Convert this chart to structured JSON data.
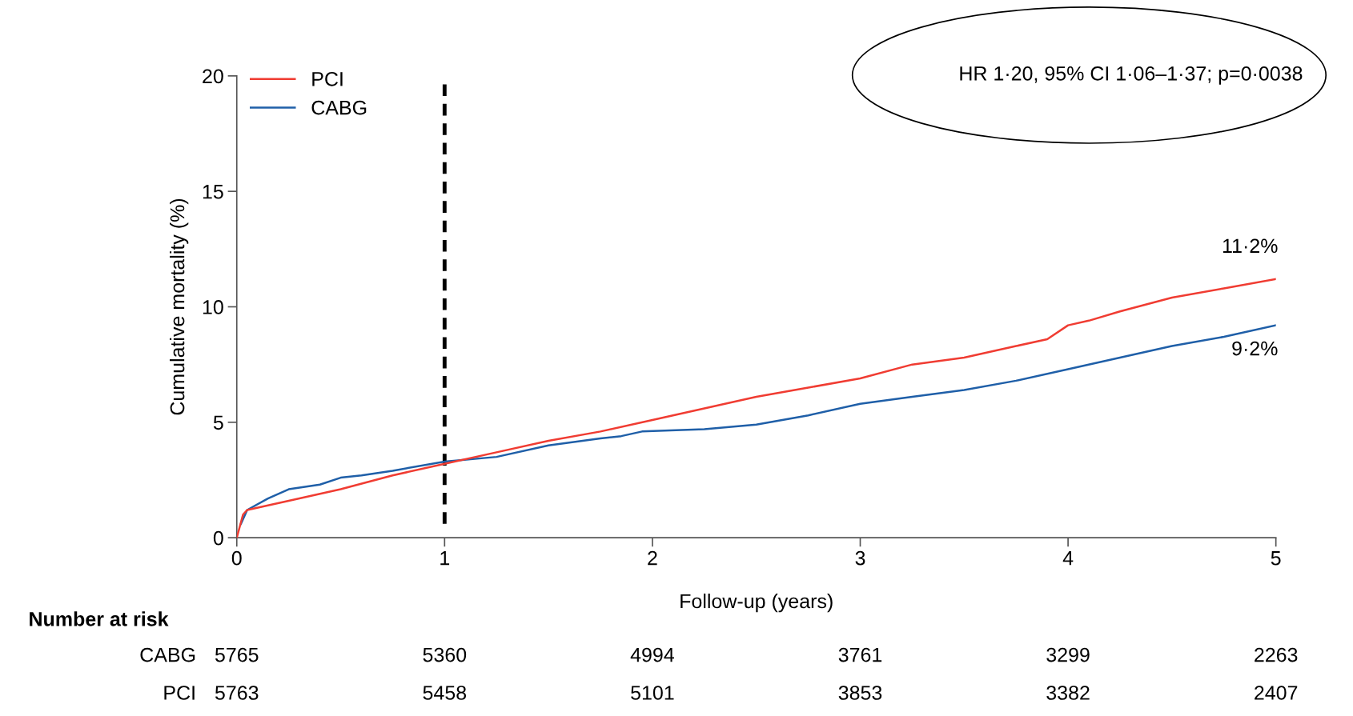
{
  "chart_data": {
    "type": "line",
    "xlabel": "Follow-up (years)",
    "ylabel": "Cumulative mortality (%)",
    "xlim": [
      0,
      5
    ],
    "xticks": [
      0,
      1,
      2,
      3,
      4,
      5
    ],
    "ylim": [
      0,
      20
    ],
    "yticks": [
      0,
      5,
      10,
      15,
      20
    ],
    "grid": false,
    "legend": "top left",
    "series": [
      {
        "name": "PCI",
        "color": "#f03c32",
        "x": [
          0,
          0.03,
          0.05,
          0.25,
          0.5,
          0.75,
          1.0,
          1.25,
          1.5,
          1.75,
          2.0,
          2.25,
          2.5,
          2.75,
          3.0,
          3.25,
          3.5,
          3.75,
          3.9,
          4.0,
          4.1,
          4.25,
          4.5,
          4.75,
          5.0
        ],
        "values": [
          0,
          1.0,
          1.2,
          1.6,
          2.1,
          2.7,
          3.2,
          3.7,
          4.2,
          4.6,
          5.1,
          5.6,
          6.1,
          6.5,
          6.9,
          7.5,
          7.8,
          8.3,
          8.6,
          9.2,
          9.4,
          9.8,
          10.4,
          10.8,
          11.2
        ]
      },
      {
        "name": "CABG",
        "color": "#1f5fa8",
        "x": [
          0.02,
          0.05,
          0.15,
          0.25,
          0.4,
          0.5,
          0.6,
          0.75,
          1.0,
          1.25,
          1.5,
          1.75,
          1.85,
          1.95,
          2.25,
          2.5,
          2.75,
          3.0,
          3.25,
          3.5,
          3.75,
          4.0,
          4.25,
          4.5,
          4.75,
          5.0
        ],
        "values": [
          0.6,
          1.2,
          1.7,
          2.1,
          2.3,
          2.6,
          2.7,
          2.9,
          3.3,
          3.5,
          4.0,
          4.3,
          4.4,
          4.6,
          4.7,
          4.9,
          5.3,
          5.8,
          6.1,
          6.4,
          6.8,
          7.3,
          7.8,
          8.3,
          8.7,
          9.2
        ]
      }
    ],
    "ref_lines": [
      {
        "axis": "x",
        "value": 1,
        "color": "#000000",
        "line_style": "dashed"
      }
    ],
    "annotations": [
      "HR 1·20, 95% CI 1·06–1·37; p=0·0038",
      {
        "text": "11·2%",
        "x": 5,
        "y": 11.2
      },
      {
        "text": "9·2%",
        "x": 5,
        "y": 9.2
      },
      "Number at risk",
      "CABG",
      "5765",
      "5360",
      "4994",
      "3761",
      "3299",
      "2263",
      "PCI",
      "5763",
      "5458",
      "5101",
      "3853",
      "3382",
      "2407"
    ]
  }
}
